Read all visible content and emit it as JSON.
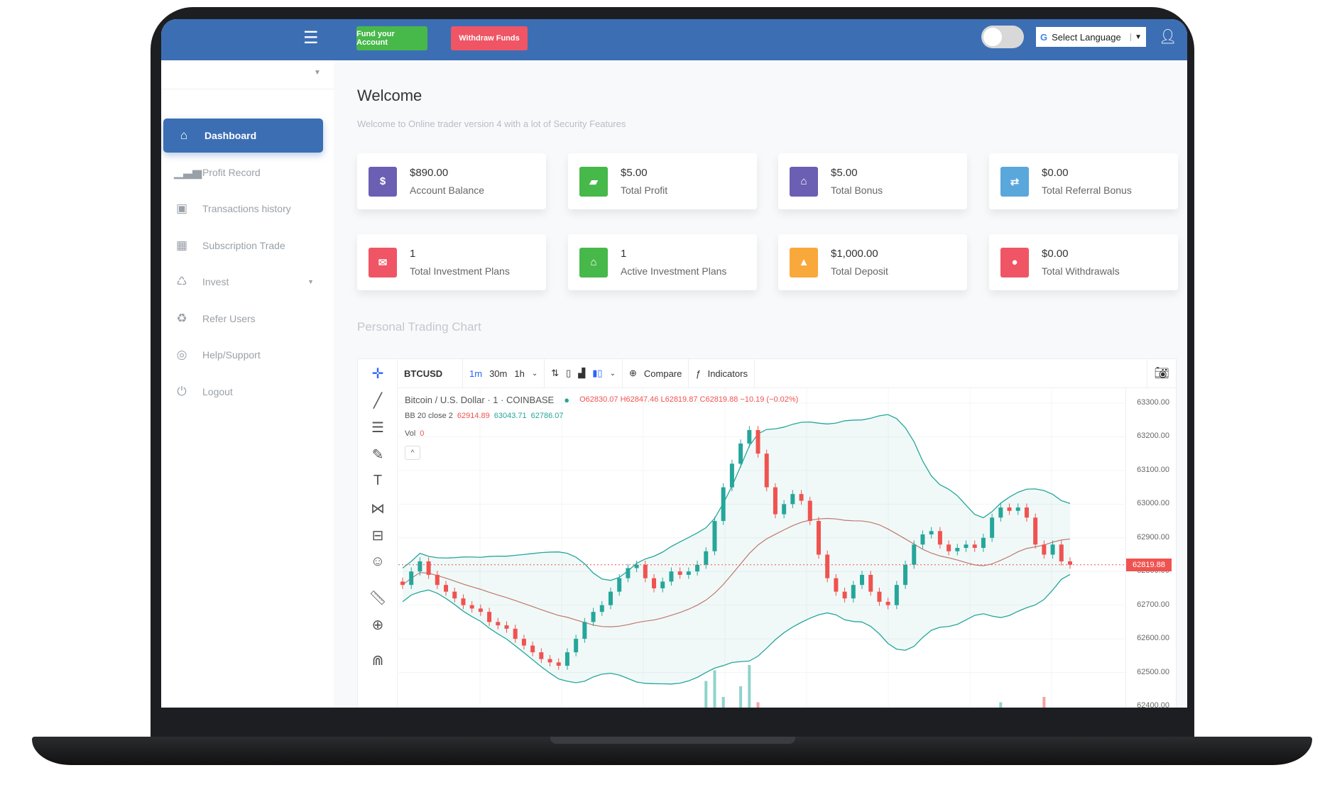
{
  "header": {
    "menu_icon": "hamburger-icon",
    "fund_label": "Fund your Account",
    "withdraw_label": "Withdraw Funds",
    "language_label": "Select Language",
    "google_icon": "G",
    "colors": {
      "header": "#3c6eb4",
      "fund": "#47b84a",
      "withdraw": "#ef5564"
    }
  },
  "sidebar": {
    "items": [
      {
        "label": "Dashboard",
        "icon": "home-icon",
        "glyph": "⌂",
        "active": true
      },
      {
        "label": "Profit Record",
        "icon": "signal-bars-icon",
        "glyph": "▁▃▅"
      },
      {
        "label": "Transactions history",
        "icon": "briefcase-icon",
        "glyph": "▣"
      },
      {
        "label": "Subscription Trade",
        "icon": "grid-icon",
        "glyph": "▦"
      },
      {
        "label": "Invest",
        "icon": "bicycle-icon",
        "glyph": "♺",
        "has_dropdown": true
      },
      {
        "label": "Refer Users",
        "icon": "recycle-icon",
        "glyph": "♻"
      },
      {
        "label": "Help/Support",
        "icon": "lifebuoy-icon",
        "glyph": "◎"
      },
      {
        "label": "Logout",
        "icon": "power-icon",
        "glyph": "⏻"
      }
    ]
  },
  "main": {
    "title": "Welcome",
    "subtitle": "Welcome to Online trader version 4 with a lot of Security Features",
    "cards": [
      {
        "value": "$890.00",
        "label": "Account Balance",
        "glyph": "$",
        "color": "#6a5fb3"
      },
      {
        "value": "$5.00",
        "label": "Total Profit",
        "glyph": "▰",
        "color": "#47b84a"
      },
      {
        "value": "$5.00",
        "label": "Total Bonus",
        "glyph": "⌂",
        "color": "#6a5fb3"
      },
      {
        "value": "$0.00",
        "label": "Total Referral Bonus",
        "glyph": "⇄",
        "color": "#5aa7dc"
      },
      {
        "value": "1",
        "label": "Total Investment Plans",
        "glyph": "✉",
        "color": "#ef5564"
      },
      {
        "value": "1",
        "label": "Active Investment Plans",
        "glyph": "⌂",
        "color": "#47b84a"
      },
      {
        "value": "$1,000.00",
        "label": "Total Deposit",
        "glyph": "▲",
        "color": "#f9a83b"
      },
      {
        "value": "$0.00",
        "label": "Total Withdrawals",
        "glyph": "●",
        "color": "#ef5564"
      }
    ],
    "chart_section_title": "Personal Trading Chart"
  },
  "chart_toolbar": {
    "symbol": "BTCUSD",
    "intervals": [
      "1m",
      "30m",
      "1h"
    ],
    "compare": "Compare",
    "indicators": "Indicators"
  },
  "chart_legend": {
    "title": "Bitcoin / U.S. Dollar · 1 · COINBASE",
    "ohlc": "O62830.07 H62847.46 L62819.87 C62819.88 −10.19 (−0.02%)",
    "bb_label": "BB 20 close 2",
    "bb_values": [
      "62914.89",
      "63043.71",
      "62786.07"
    ],
    "vol_label": "Vol",
    "vol_value": "0"
  },
  "chart_data": {
    "type": "candlestick",
    "ylim": [
      62400,
      63300
    ],
    "y_ticks": [
      "63300.00",
      "63200.00",
      "63100.00",
      "63000.00",
      "62900.00",
      "62800.00",
      "62700.00",
      "62600.00",
      "62500.00",
      "62400.00"
    ],
    "last_price": "62819.88",
    "closes": [
      62760,
      62800,
      62830,
      62790,
      62760,
      62740,
      62720,
      62700,
      62690,
      62680,
      62650,
      62640,
      62630,
      62600,
      62580,
      62560,
      62540,
      62530,
      62520,
      62560,
      62600,
      62650,
      62680,
      62700,
      62740,
      62780,
      62810,
      62820,
      62780,
      62750,
      62770,
      62800,
      62790,
      62800,
      62820,
      62860,
      62950,
      63050,
      63120,
      63180,
      63220,
      63150,
      63050,
      62970,
      63000,
      63030,
      63010,
      62950,
      62850,
      62780,
      62740,
      62720,
      62760,
      62790,
      62740,
      62710,
      62700,
      62760,
      62820,
      62880,
      62910,
      62920,
      62880,
      62860,
      62870,
      62880,
      62870,
      62900,
      62960,
      62990,
      62980,
      62990,
      62960,
      62880,
      62850,
      62880,
      62830,
      62820
    ],
    "volumes": [
      1,
      1,
      2,
      1,
      1,
      2,
      1,
      1,
      1,
      2,
      1,
      1,
      1,
      2,
      1,
      1,
      1,
      2,
      1,
      1,
      1,
      1,
      2,
      1,
      1,
      1,
      1,
      1,
      2,
      1,
      1,
      1,
      1,
      2,
      4,
      9,
      11,
      6,
      3,
      8,
      12,
      5,
      3,
      2,
      1,
      4,
      3,
      2,
      3,
      1,
      2,
      1,
      1,
      2,
      1,
      1,
      1,
      1,
      1,
      2,
      1,
      1,
      1,
      1,
      2,
      1,
      1,
      1,
      2,
      5,
      2,
      1,
      1,
      1,
      6,
      2,
      1,
      1
    ],
    "colors": {
      "up": "#26a69a",
      "down": "#ef5350",
      "band": "#26a69a",
      "basis": "#c0776e"
    }
  }
}
